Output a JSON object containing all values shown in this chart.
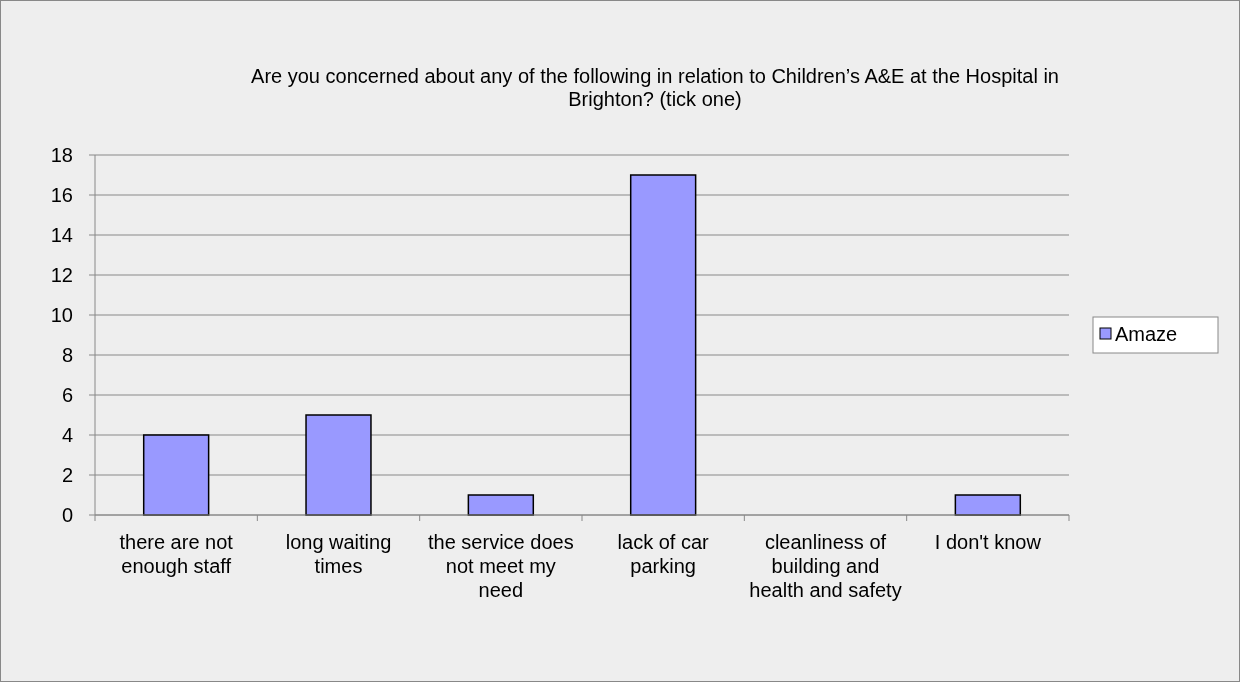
{
  "chart_data": {
    "type": "bar",
    "title": "Are you concerned about any of the following in relation to Children’s A&E at the Hospital in Brighton? (tick one)",
    "categories": [
      "there are not enough staff",
      "long waiting times",
      "the service does not meet my need",
      "lack of car parking",
      "cleanliness of building and health and safety",
      "I don't know"
    ],
    "series": [
      {
        "name": "Amaze",
        "color": "#9999ff",
        "values": [
          4,
          5,
          1,
          17,
          0,
          1
        ]
      }
    ],
    "ylim": [
      0,
      18
    ],
    "yticks": [
      0,
      2,
      4,
      6,
      8,
      10,
      12,
      14,
      16,
      18
    ],
    "grid": "y",
    "legend": "right"
  }
}
